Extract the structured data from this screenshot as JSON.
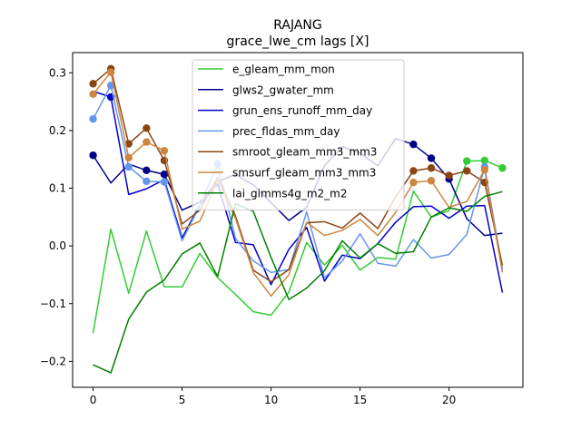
{
  "chart_data": {
    "type": "line",
    "title": "RAJANG",
    "subtitle": "grace_lwe_cm lags [X]",
    "xlabel": "",
    "ylabel": "",
    "xlim": [
      -1.15,
      24.15
    ],
    "ylim": [
      -0.245,
      0.335
    ],
    "x_ticks": [
      0,
      5,
      10,
      15,
      20
    ],
    "y_ticks": [
      -0.2,
      -0.1,
      0.0,
      0.1,
      0.2,
      0.3
    ],
    "y_tick_labels": [
      "−0.2",
      "−0.1",
      "0.0",
      "0.1",
      "0.2",
      "0.3"
    ],
    "legend_position": "top-center",
    "x": [
      0,
      1,
      2,
      3,
      4,
      5,
      6,
      7,
      8,
      9,
      10,
      11,
      12,
      13,
      14,
      15,
      16,
      17,
      18,
      19,
      20,
      21,
      22,
      23
    ],
    "series": [
      {
        "name": "e_gleam_mm_mon",
        "color": "#32cd32",
        "values": [
          -0.151,
          0.029,
          -0.082,
          0.026,
          -0.071,
          -0.071,
          -0.013,
          -0.055,
          -0.084,
          -0.114,
          -0.12,
          -0.08,
          0.006,
          -0.033,
          0.001,
          -0.042,
          -0.02,
          -0.023,
          0.095,
          0.05,
          0.061,
          0.147,
          0.148,
          0.135
        ],
        "marker_points": [
          21,
          22,
          23
        ]
      },
      {
        "name": "glws2_gwater_mm",
        "color": "#00008b",
        "values": [
          0.157,
          0.109,
          0.142,
          0.131,
          0.124,
          0.062,
          0.076,
          0.112,
          0.124,
          0.106,
          0.075,
          0.044,
          0.067,
          0.139,
          0.172,
          0.161,
          0.139,
          0.186,
          0.176,
          0.152,
          0.116,
          0.047,
          0.018,
          0.022
        ],
        "marker_points": [
          0,
          3,
          4,
          18,
          19,
          20
        ]
      },
      {
        "name": "grun_ens_runoff_mm_day",
        "color": "#0000cd",
        "values": [
          0.268,
          0.258,
          0.089,
          0.099,
          0.115,
          0.014,
          0.071,
          0.107,
          0.006,
          0.002,
          -0.067,
          -0.006,
          0.032,
          -0.061,
          -0.016,
          -0.022,
          0.004,
          0.041,
          0.068,
          0.069,
          0.048,
          0.069,
          0.07,
          -0.081
        ],
        "marker_points": [
          1
        ]
      },
      {
        "name": "prec_fldas_mm_day",
        "color": "#6495ed",
        "values": [
          0.22,
          0.278,
          0.137,
          0.112,
          0.111,
          0.009,
          0.07,
          0.142,
          0.013,
          -0.026,
          -0.046,
          -0.041,
          0.059,
          -0.055,
          -0.026,
          0.021,
          -0.03,
          -0.035,
          0.011,
          -0.021,
          -0.015,
          0.02,
          0.137,
          -0.04
        ],
        "marker_points": [
          0,
          1,
          2,
          3,
          4,
          7,
          22
        ]
      },
      {
        "name": "smroot_gleam_mm3_mm3",
        "color": "#8b4513",
        "values": [
          0.281,
          0.307,
          0.177,
          0.204,
          0.148,
          0.038,
          0.062,
          0.119,
          0.052,
          -0.042,
          -0.062,
          -0.041,
          0.04,
          0.042,
          0.031,
          0.057,
          0.03,
          0.085,
          0.13,
          0.135,
          0.122,
          0.13,
          0.11,
          -0.034
        ],
        "marker_points": [
          0,
          1,
          2,
          3,
          4,
          18,
          19,
          20,
          21,
          22
        ]
      },
      {
        "name": "smsurf_gleam_mm3_mm3",
        "color": "#cd853f",
        "values": [
          0.263,
          0.301,
          0.153,
          0.18,
          0.165,
          0.029,
          0.043,
          0.113,
          0.048,
          -0.046,
          -0.087,
          -0.05,
          0.041,
          0.018,
          0.027,
          0.046,
          0.018,
          0.058,
          0.11,
          0.113,
          0.067,
          0.077,
          0.132,
          -0.046
        ],
        "marker_points": [
          0,
          1,
          2,
          3,
          4,
          18,
          19,
          22
        ]
      },
      {
        "name": "lai_gimms4g_m2_m2",
        "color": "#008000",
        "values": [
          -0.206,
          -0.22,
          -0.127,
          -0.08,
          -0.059,
          -0.014,
          0.005,
          -0.053,
          0.073,
          0.06,
          -0.02,
          -0.093,
          -0.073,
          -0.043,
          0.009,
          -0.021,
          0.004,
          -0.013,
          -0.01,
          0.05,
          0.066,
          0.06,
          0.086,
          0.094
        ],
        "marker_points": []
      }
    ]
  }
}
